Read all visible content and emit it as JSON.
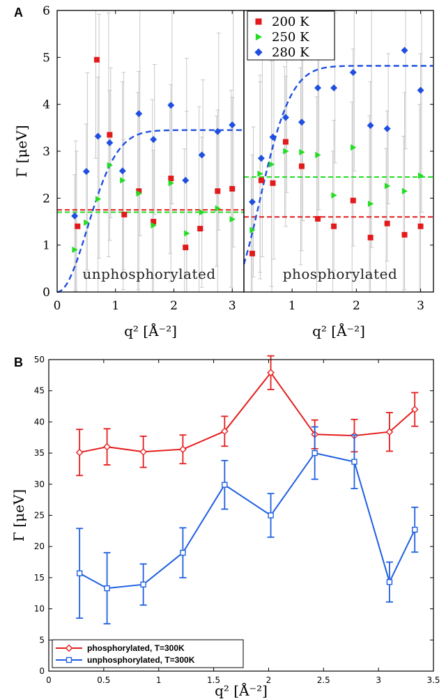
{
  "panel_a_label": "A",
  "panel_b_label": "B",
  "chart_data": [
    {
      "type": "scatter",
      "panel": "A-left",
      "text_label": "unphosphorylated",
      "xlabel": "q² [Å⁻²]",
      "ylabel": "Γ [μeV]",
      "xlim": [
        0,
        3.2
      ],
      "ylim": [
        0,
        6
      ],
      "xticks": [
        "0",
        "1",
        "2",
        "3"
      ],
      "yticks": [
        "0",
        "1",
        "2",
        "3",
        "4",
        "5",
        "6"
      ],
      "series": [
        {
          "name": "200 K",
          "color": "#e31a1c",
          "marker": "square",
          "x": [
            0.35,
            0.68,
            0.9,
            1.15,
            1.4,
            1.65,
            1.95,
            2.2,
            2.45,
            2.75,
            3.0
          ],
          "y": [
            1.4,
            4.95,
            3.35,
            1.65,
            2.15,
            1.5,
            2.42,
            0.95,
            1.35,
            2.15,
            2.2
          ]
        },
        {
          "name": "250 K",
          "color": "#22dd22",
          "marker": "triangle",
          "x": [
            0.3,
            0.5,
            0.7,
            0.9,
            1.12,
            1.4,
            1.65,
            1.95,
            2.22,
            2.48,
            2.75,
            3.0
          ],
          "y": [
            0.9,
            1.48,
            1.98,
            2.7,
            2.38,
            2.1,
            1.42,
            2.32,
            1.25,
            1.7,
            1.78,
            1.55
          ]
        },
        {
          "name": "280 K",
          "color": "#1f4fe0",
          "marker": "diamond",
          "x": [
            0.3,
            0.5,
            0.7,
            0.9,
            1.12,
            1.4,
            1.65,
            1.95,
            2.2,
            2.48,
            2.75,
            3.0
          ],
          "y": [
            1.62,
            2.57,
            3.32,
            3.18,
            2.58,
            3.8,
            3.25,
            3.98,
            2.38,
            2.92,
            3.42,
            3.56
          ]
        }
      ],
      "fits": [
        {
          "type": "constant",
          "color": "#e31a1c",
          "value": 1.75
        },
        {
          "type": "constant",
          "color": "#22dd22",
          "value": 1.7
        },
        {
          "type": "saturating",
          "color": "#1f4fe0",
          "amplitude": 3.45,
          "q0": 0.73
        }
      ]
    },
    {
      "type": "scatter",
      "panel": "A-right",
      "text_label": "phosphorylated",
      "xlabel": "q² [Å⁻²]",
      "xlim": [
        0.25,
        3.2
      ],
      "ylim": [
        0,
        6
      ],
      "xticks": [
        "1",
        "2",
        "3"
      ],
      "legend": {
        "placement": "top-left",
        "entries": [
          "200 K",
          "250 K",
          "280 K"
        ]
      },
      "series": [
        {
          "name": "200 K",
          "color": "#e31a1c",
          "marker": "square",
          "x": [
            0.38,
            0.52,
            0.7,
            0.9,
            1.15,
            1.4,
            1.65,
            1.95,
            2.22,
            2.48,
            2.75,
            3.0
          ],
          "y": [
            0.82,
            2.38,
            2.32,
            3.2,
            2.68,
            1.56,
            1.4,
            1.95,
            1.16,
            1.46,
            1.22,
            1.4
          ]
        },
        {
          "name": "250 K",
          "color": "#22dd22",
          "marker": "triangle",
          "x": [
            0.38,
            0.5,
            0.68,
            0.9,
            1.15,
            1.4,
            1.65,
            1.95,
            2.22,
            2.48,
            2.75,
            3.0
          ],
          "y": [
            1.32,
            2.52,
            2.72,
            3.0,
            2.98,
            2.92,
            2.06,
            3.08,
            1.88,
            2.26,
            2.15,
            2.48
          ]
        },
        {
          "name": "280 K",
          "color": "#1f4fe0",
          "marker": "diamond",
          "x": [
            0.38,
            0.52,
            0.7,
            0.9,
            1.15,
            1.4,
            1.65,
            1.95,
            2.22,
            2.48,
            2.75,
            3.0
          ],
          "y": [
            1.92,
            2.85,
            3.3,
            3.72,
            3.62,
            4.35,
            4.35,
            4.68,
            3.55,
            3.48,
            5.15,
            4.3
          ]
        }
      ],
      "fits": [
        {
          "type": "constant",
          "color": "#e31a1c",
          "value": 1.6
        },
        {
          "type": "constant",
          "color": "#22dd22",
          "value": 2.45
        },
        {
          "type": "saturating",
          "color": "#1f4fe0",
          "amplitude": 4.82,
          "q0": 0.69
        }
      ]
    },
    {
      "type": "line",
      "panel": "B",
      "xlabel": "q² [Å⁻²]",
      "ylabel": "Γ [μeV]",
      "xlim": [
        0,
        3.5
      ],
      "ylim": [
        0,
        50
      ],
      "xticks": [
        "0",
        "0.5",
        "1",
        "1.5",
        "2",
        "2.5",
        "3",
        "3.5"
      ],
      "yticks": [
        "0",
        "5",
        "10",
        "15",
        "20",
        "25",
        "30",
        "35",
        "40",
        "45",
        "50"
      ],
      "legend": {
        "placement": "bottom-left"
      },
      "series": [
        {
          "name": "phosphorylated, T=300K",
          "color": "#e51d1d",
          "marker": "diamond",
          "x": [
            0.28,
            0.53,
            0.86,
            1.22,
            1.6,
            2.02,
            2.42,
            2.78,
            3.1,
            3.33
          ],
          "y": [
            35.1,
            36.0,
            35.2,
            35.6,
            38.5,
            47.9,
            38.0,
            37.8,
            38.4,
            42.0
          ],
          "err": [
            3.7,
            2.9,
            2.5,
            2.3,
            2.4,
            2.7,
            2.3,
            2.6,
            3.1,
            2.7
          ]
        },
        {
          "name": "unphosphorylated, T=300K",
          "color": "#1f5fe0",
          "marker": "square",
          "x": [
            0.28,
            0.53,
            0.86,
            1.22,
            1.6,
            2.02,
            2.42,
            2.78,
            3.1,
            3.33
          ],
          "y": [
            15.7,
            13.3,
            13.9,
            19.0,
            29.9,
            25.0,
            35.0,
            33.6,
            14.3,
            22.7
          ],
          "err": [
            7.2,
            5.7,
            3.3,
            4.0,
            3.9,
            3.5,
            4.2,
            4.3,
            3.2,
            3.6
          ]
        }
      ]
    }
  ]
}
